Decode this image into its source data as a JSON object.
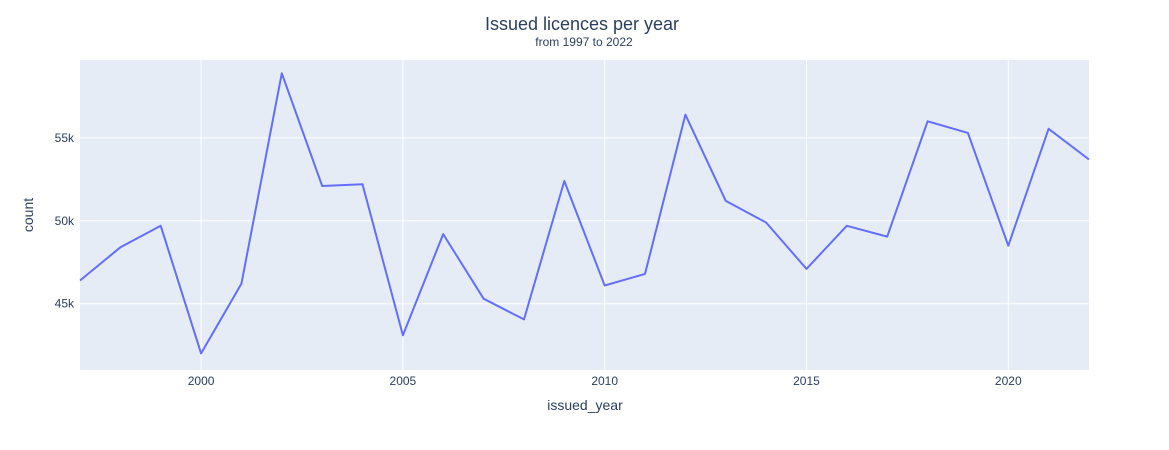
{
  "chart_data": {
    "type": "line",
    "title": "Issued licences per year",
    "subtitle": "from 1997 to 2022",
    "xlabel": "issued_year",
    "ylabel": "count",
    "xlim": [
      1997,
      2022
    ],
    "ylim": [
      41000,
      59700
    ],
    "x_ticks": [
      2000,
      2005,
      2010,
      2015,
      2020
    ],
    "y_ticks": [
      {
        "value": 45000,
        "label": "45k"
      },
      {
        "value": 50000,
        "label": "50k"
      },
      {
        "value": 55000,
        "label": "55k"
      }
    ],
    "grid": true,
    "legend": "none",
    "line_color": "#636efa",
    "plot_bg": "#e5ecf6",
    "x": [
      1997,
      1998,
      1999,
      2000,
      2001,
      2002,
      2003,
      2004,
      2005,
      2006,
      2007,
      2008,
      2009,
      2010,
      2011,
      2012,
      2013,
      2014,
      2015,
      2016,
      2017,
      2018,
      2019,
      2020,
      2021,
      2022
    ],
    "series": [
      {
        "values": [
          46400,
          48400,
          49700,
          42000,
          46200,
          58900,
          52100,
          52200,
          43100,
          49200,
          45300,
          44050,
          52400,
          46100,
          46800,
          56400,
          51200,
          49900,
          47100,
          49700,
          49050,
          56000,
          55300,
          48500,
          55550,
          53700
        ]
      }
    ]
  }
}
